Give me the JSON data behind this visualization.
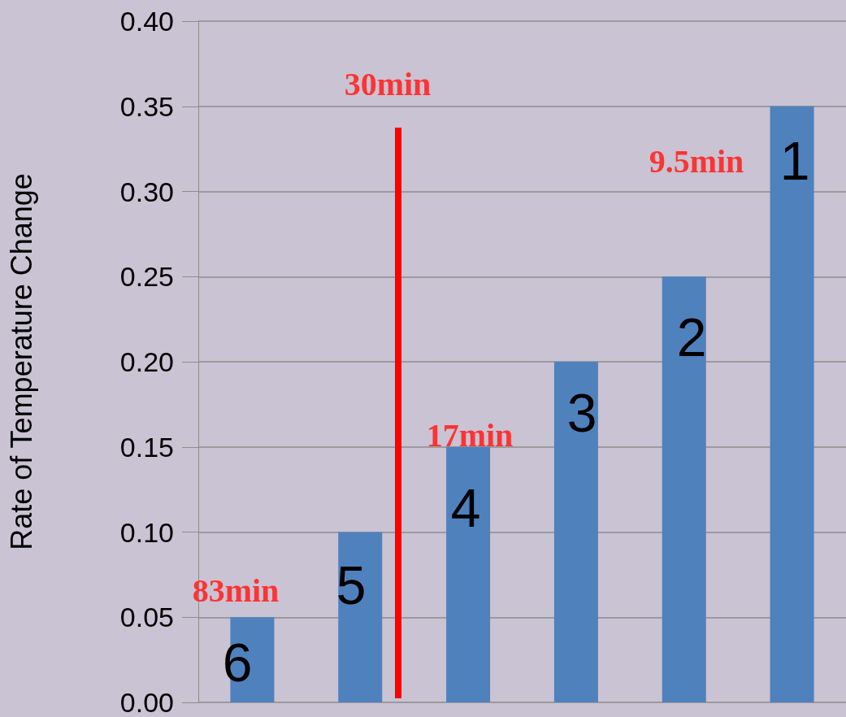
{
  "chart_data": {
    "type": "bar",
    "ylabel": "Rate of Temperature Change",
    "categories": [
      null,
      null,
      null,
      null,
      null,
      null
    ],
    "ylim": [
      0,
      0.4
    ],
    "yticks": [
      {
        "value": 0,
        "label": "0.00"
      },
      {
        "value": 0.05,
        "label": "0.05"
      },
      {
        "value": 0.1,
        "label": "0.10"
      },
      {
        "value": 0.15,
        "label": "0.15"
      },
      {
        "value": 0.2,
        "label": "0.20"
      },
      {
        "value": 0.25,
        "label": "0.25"
      },
      {
        "value": 0.3,
        "label": "0.30"
      },
      {
        "value": 0.35,
        "label": "0.35"
      },
      {
        "value": 0.4,
        "label": "0.40"
      }
    ],
    "grid": "y",
    "series": [
      {
        "color": "#4f81bd",
        "values": [
          0.05,
          0.1,
          0.15,
          0.2,
          0.25,
          0.35
        ]
      }
    ],
    "annotations": [
      "6",
      "5",
      "4",
      "3",
      "2",
      "1",
      "83min",
      "17min",
      "9.5min",
      "30min"
    ]
  }
}
